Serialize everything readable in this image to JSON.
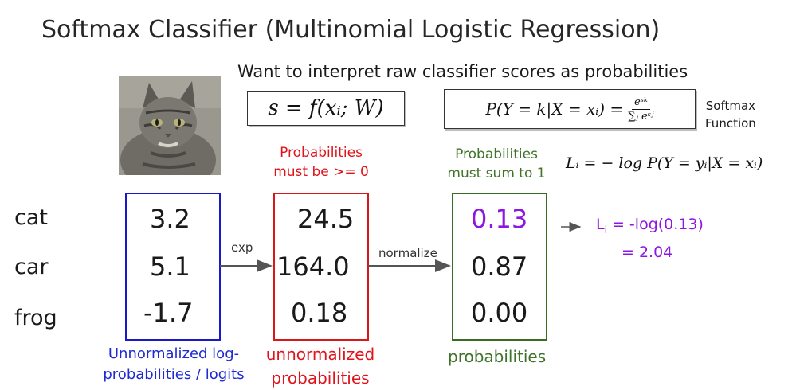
{
  "title": "Softmax Classifier (Multinomial Logistic Regression)",
  "subtitle": "Want to interpret raw classifier scores as probabilities",
  "formulas": {
    "score": "s = f(xᵢ; W)",
    "softmax_lhs": "P(Y = k|X = xᵢ) =",
    "softmax_num": "eˢᵏ",
    "softmax_den": "∑ⱼ eˢʲ",
    "softmax_label_line1": "Softmax",
    "softmax_label_line2": "Function",
    "loss": "Lᵢ = − log P(Y = yᵢ|X = xᵢ)"
  },
  "classes": [
    "cat",
    "car",
    "frog"
  ],
  "scores": [
    "3.2",
    "5.1",
    "-1.7"
  ],
  "exp_values": [
    "24.5",
    "164.0",
    "0.18"
  ],
  "probabilities": [
    "0.13",
    "0.87",
    "0.00"
  ],
  "arrows": {
    "exp": "exp",
    "normalize": "normalize"
  },
  "notes": {
    "positive_line1": "Probabilities",
    "positive_line2": "must be >= 0",
    "sum_line1": "Probabilities",
    "sum_line2": "must sum to 1"
  },
  "captions": {
    "logits_line1": "Unnormalized log-",
    "logits_line2": "probabilities / logits",
    "unnorm_line1": "unnormalized",
    "unnorm_line2": "probabilities",
    "probs": "probabilities"
  },
  "loss_result": {
    "line1_prefix": "L",
    "line1_sub": "i",
    "line1_rest": " = -log(0.13)",
    "line2": "= 2.04"
  },
  "colors": {
    "logits": "#1919cc",
    "unnormalized": "#d9161a",
    "probabilities": "#3a6b22",
    "highlight": "#8f16e0"
  }
}
